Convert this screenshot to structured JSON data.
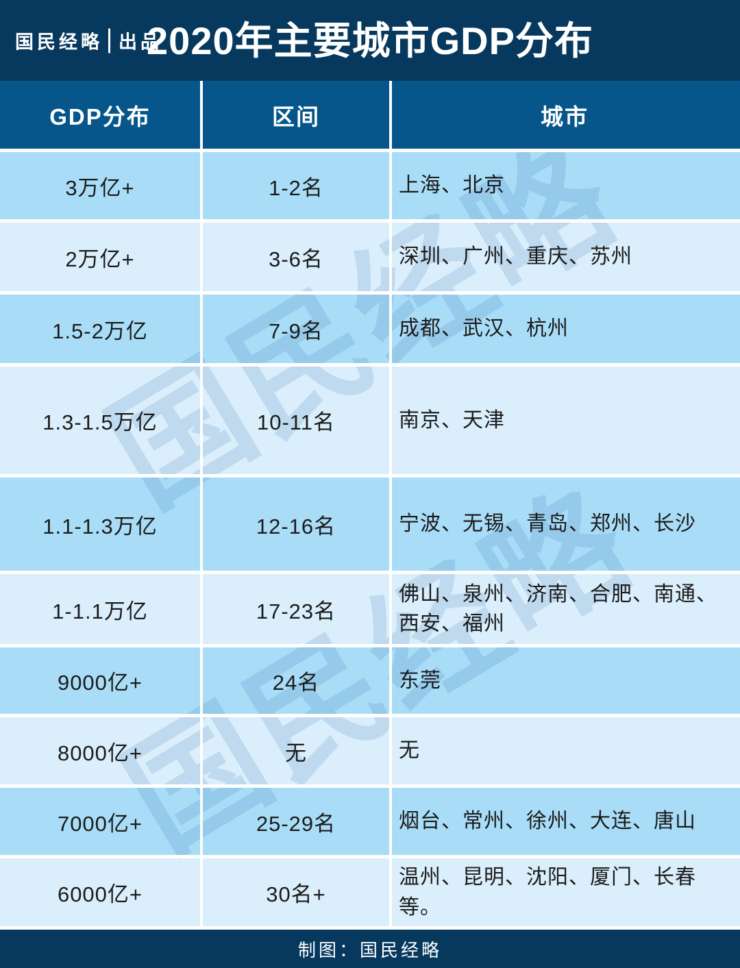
{
  "header": {
    "brand": "国民经略",
    "brand_suffix": "出品",
    "title": "2020年主要城市GDP分布"
  },
  "table": {
    "columns": [
      "GDP分布",
      "区间",
      "城市"
    ],
    "rows": [
      {
        "gdp": "3万亿+",
        "range": "1-2名",
        "cities": "上海、北京"
      },
      {
        "gdp": "2万亿+",
        "range": "3-6名",
        "cities": "深圳、广州、重庆、苏州"
      },
      {
        "gdp": "1.5-2万亿",
        "range": "7-9名",
        "cities": "成都、武汉、杭州"
      },
      {
        "gdp": "1.3-1.5万亿",
        "range": "10-11名",
        "cities": "南京、天津"
      },
      {
        "gdp": "1.1-1.3万亿",
        "range": "12-16名",
        "cities": "宁波、无锡、青岛、郑州、长沙"
      },
      {
        "gdp": "1-1.1万亿",
        "range": "17-23名",
        "cities": "佛山、泉州、济南、合肥、南通、西安、福州"
      },
      {
        "gdp": "9000亿+",
        "range": "24名",
        "cities": "东莞"
      },
      {
        "gdp": "8000亿+",
        "range": "无",
        "cities": "无"
      },
      {
        "gdp": "7000亿+",
        "range": "25-29名",
        "cities": "烟台、常州、徐州、大连、唐山"
      },
      {
        "gdp": "6000亿+",
        "range": "30名+",
        "cities": "温州、昆明、沈阳、厦门、长春等。"
      }
    ]
  },
  "chart_data": {
    "type": "table",
    "title": "2020年主要城市GDP分布",
    "columns": [
      "GDP分布",
      "区间",
      "城市"
    ],
    "rows": [
      [
        "3万亿+",
        "1-2名",
        "上海、北京"
      ],
      [
        "2万亿+",
        "3-6名",
        "深圳、广州、重庆、苏州"
      ],
      [
        "1.5-2万亿",
        "7-9名",
        "成都、武汉、杭州"
      ],
      [
        "1.3-1.5万亿",
        "10-11名",
        "南京、天津"
      ],
      [
        "1.1-1.3万亿",
        "12-16名",
        "宁波、无锡、青岛、郑州、长沙"
      ],
      [
        "1-1.1万亿",
        "17-23名",
        "佛山、泉州、济南、合肥、南通、西安、福州"
      ],
      [
        "9000亿+",
        "24名",
        "东莞"
      ],
      [
        "8000亿+",
        "无",
        "无"
      ],
      [
        "7000亿+",
        "25-29名",
        "烟台、常州、徐州、大连、唐山"
      ],
      [
        "6000亿+",
        "30名+",
        "温州、昆明、沈阳、厦门、长春等。"
      ]
    ]
  },
  "watermark_text": "国民经略",
  "footer": {
    "credit": "制图：国民经略"
  },
  "colors": {
    "navy": "#07395e",
    "header-blue": "#06568b",
    "row-dark": "#a9ddf7",
    "row-light": "#daeefb",
    "text-dark": "#1b1b1b",
    "divider": "#ffffff"
  }
}
